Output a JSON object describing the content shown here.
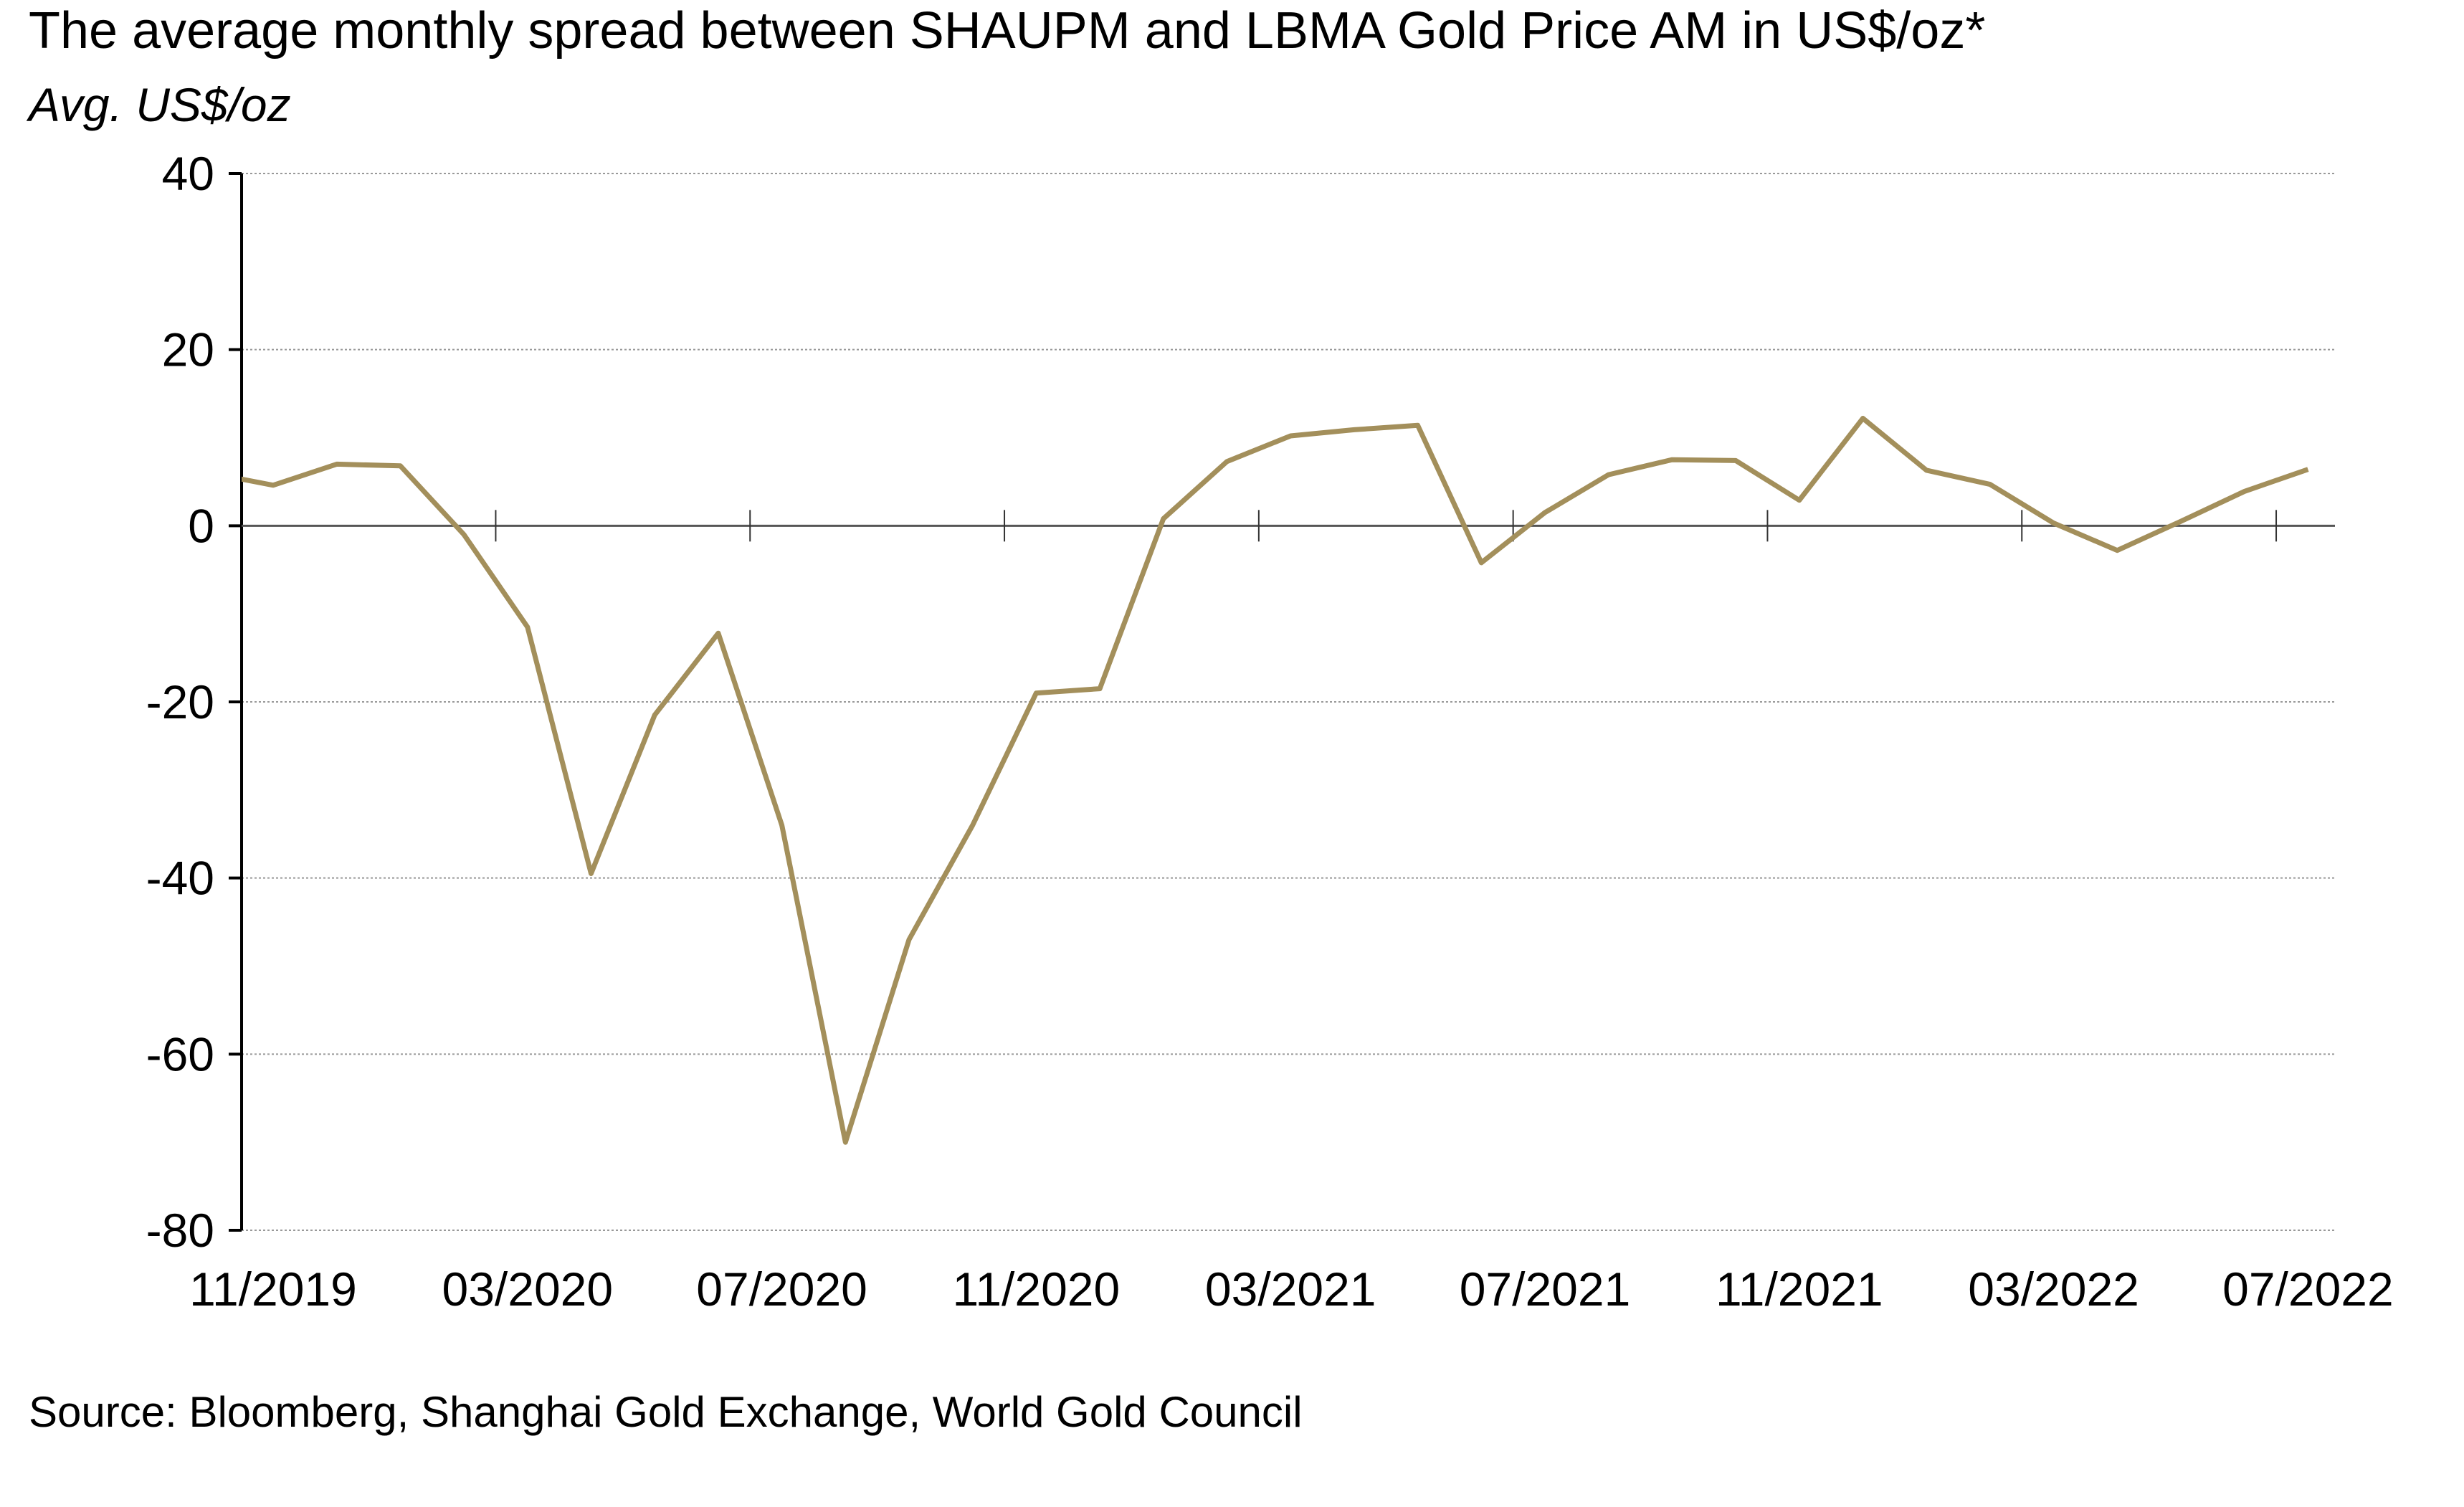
{
  "chart_data": {
    "type": "line",
    "title": "The average monthly spread between SHAUPM and LBMA Gold Price AM in US$/oz*",
    "subtitle": "Avg. US$/oz",
    "source": "Source: Bloomberg, Shanghai Gold Exchange, World Gold Council",
    "xlabel": "",
    "ylabel": "",
    "ylim": [
      -80,
      40
    ],
    "yticks": [
      "40",
      "20",
      "0",
      "-20",
      "-40",
      "-60",
      "-80"
    ],
    "xtick_labels": [
      "11/2019",
      "03/2020",
      "07/2020",
      "11/2020",
      "03/2021",
      "07/2021",
      "11/2021",
      "03/2022",
      "07/2022"
    ],
    "grid": "horizontal dotted",
    "line_color": "#A38F5B",
    "x": [
      "10/2019",
      "11/2019",
      "12/2019",
      "01/2020",
      "02/2020",
      "03/2020",
      "04/2020",
      "05/2020",
      "06/2020",
      "07/2020",
      "08/2020",
      "09/2020",
      "10/2020",
      "11/2020",
      "12/2020",
      "01/2021",
      "02/2021",
      "03/2021",
      "04/2021",
      "05/2021",
      "06/2021",
      "07/2021",
      "08/2021",
      "09/2021",
      "10/2021",
      "11/2021",
      "12/2021",
      "01/2022",
      "02/2022",
      "03/2022",
      "04/2022",
      "05/2022",
      "06/2022",
      "07/2022"
    ],
    "values": [
      6.0,
      4.6,
      7.0,
      6.8,
      -1.0,
      -11.5,
      -39.5,
      -21.5,
      -12.2,
      -34.0,
      -70.0,
      -47.0,
      -34.0,
      -19.0,
      -18.5,
      0.8,
      7.3,
      10.2,
      10.9,
      11.4,
      -4.2,
      1.5,
      5.8,
      7.5,
      7.4,
      2.9,
      12.2,
      6.3,
      4.7,
      0.3,
      -2.8,
      0.5,
      3.9,
      6.4
    ]
  }
}
